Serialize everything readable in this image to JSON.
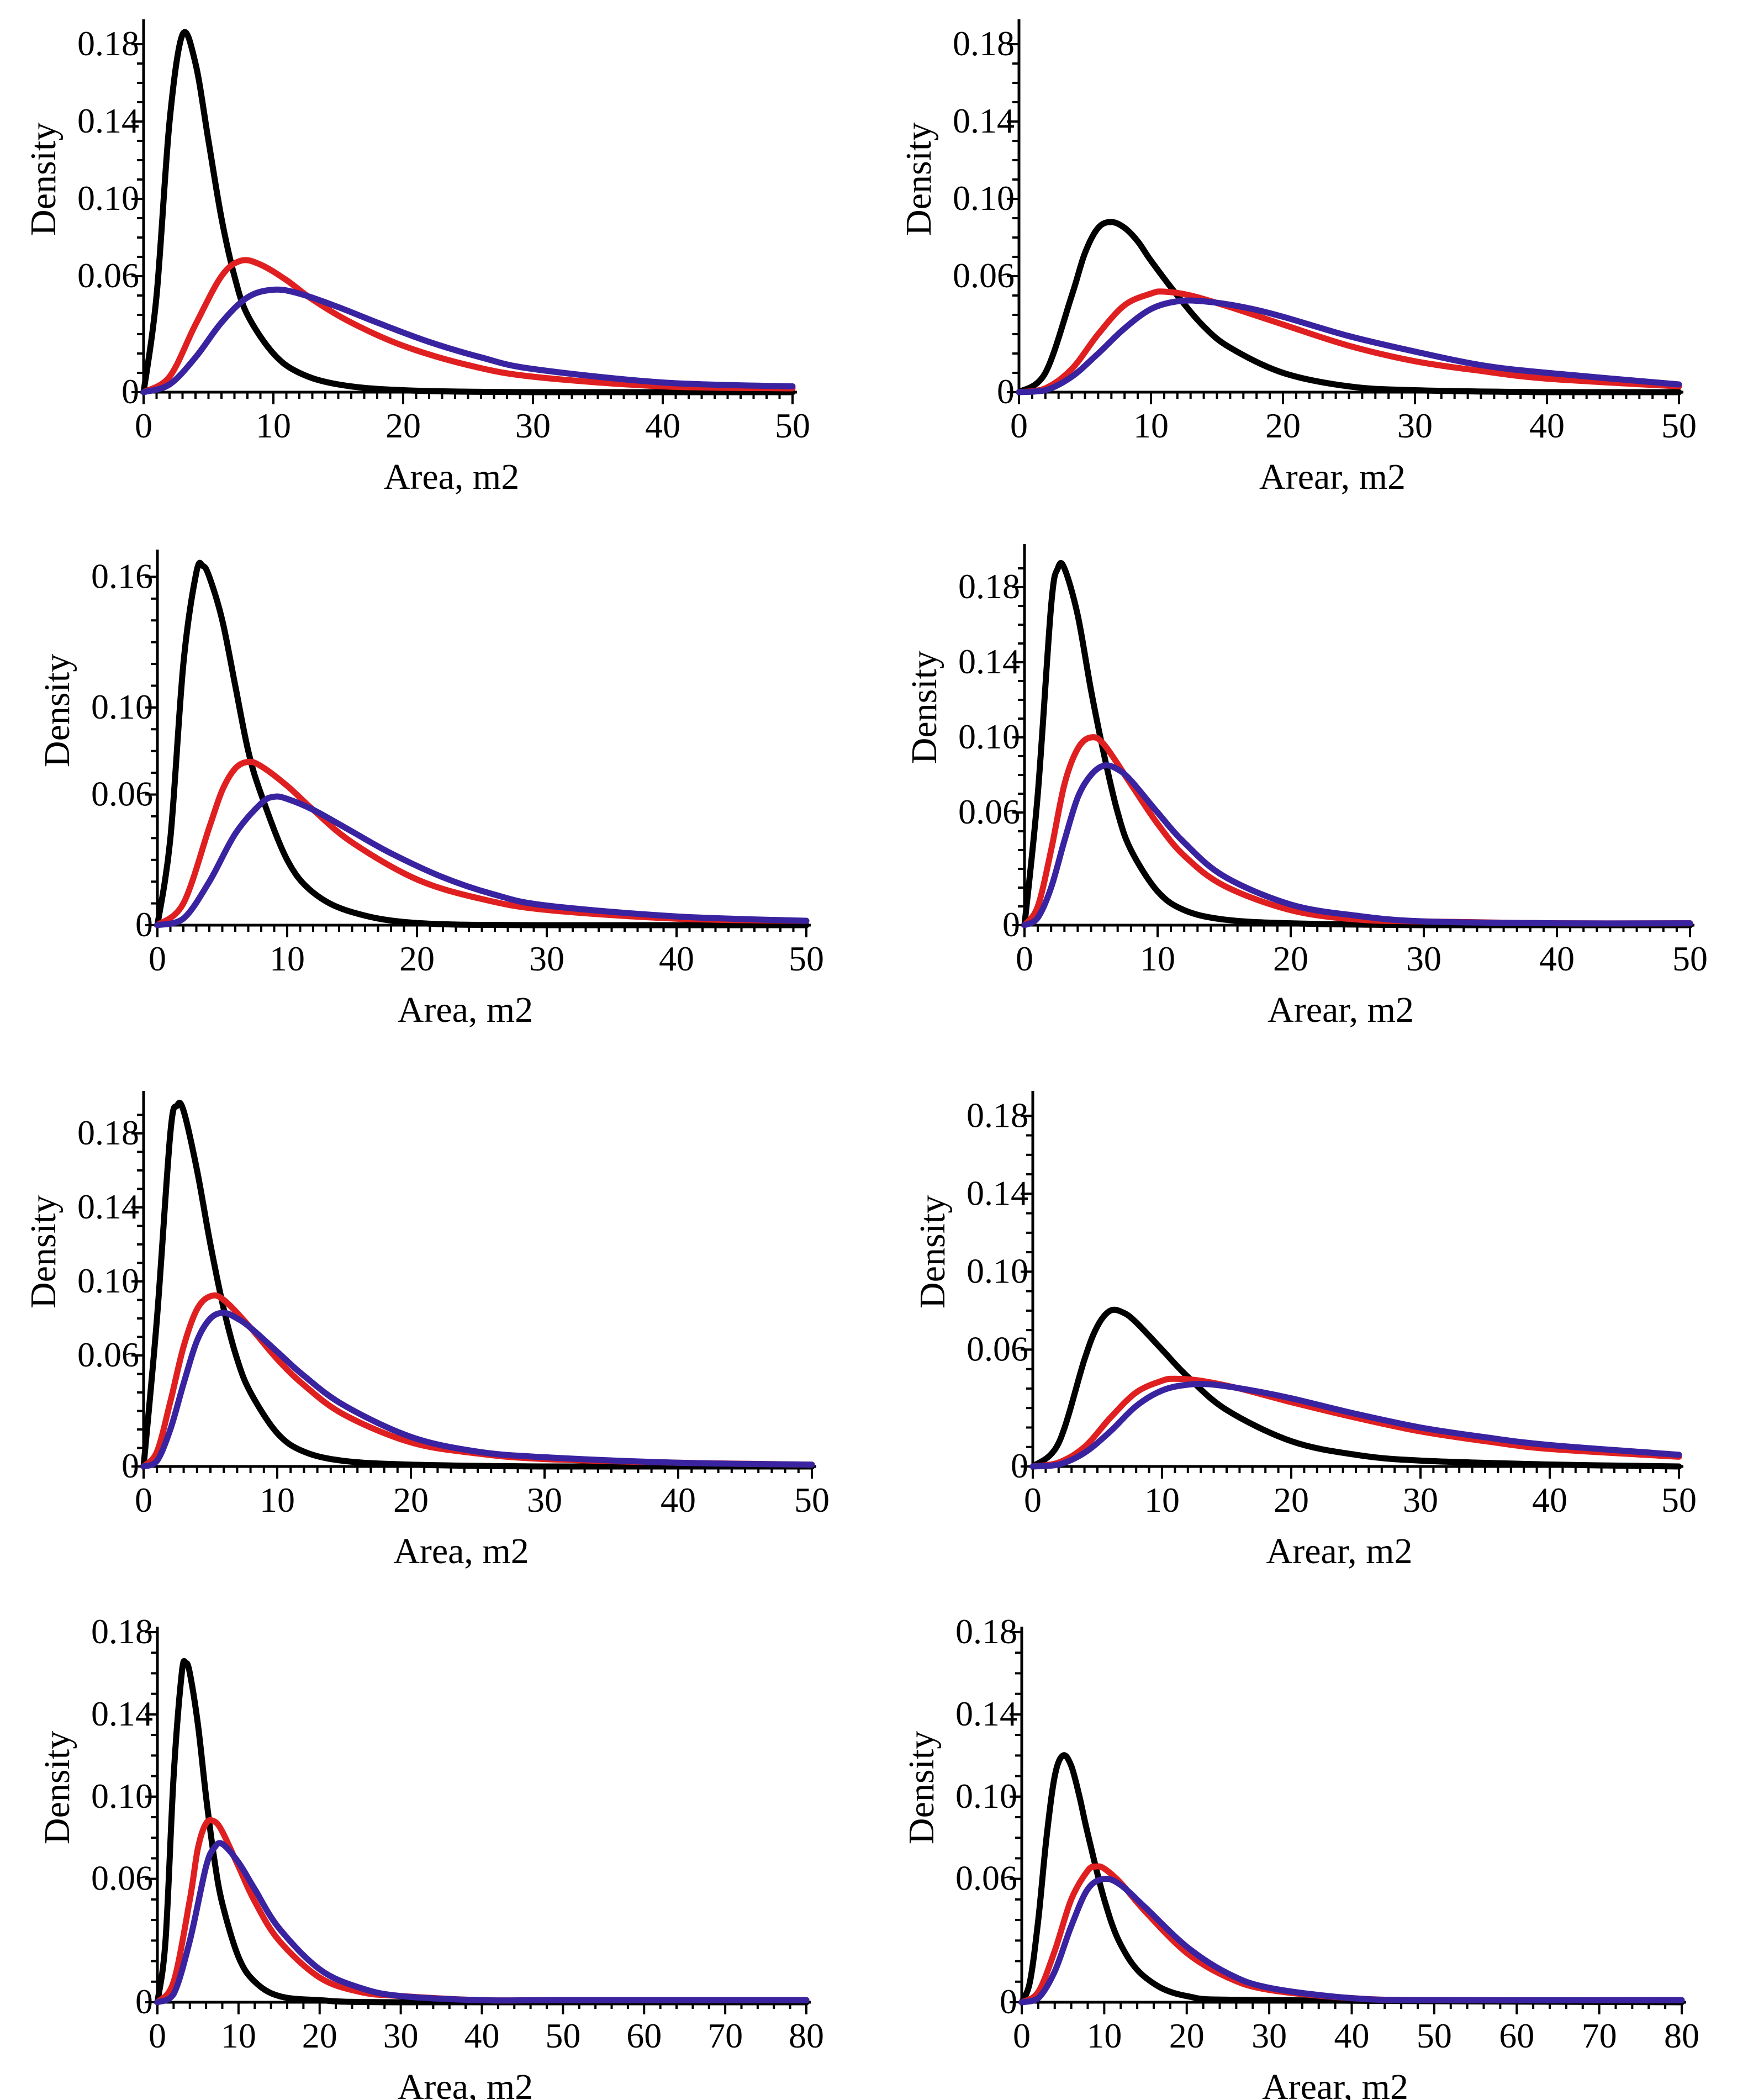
{
  "chart_data": [
    {
      "type": "line",
      "panel": "row-1-left",
      "title": "",
      "xlabel": "Area, m2",
      "ylabel": "Density",
      "xlim": [
        0,
        50
      ],
      "ylim": [
        0,
        0.19
      ],
      "xticks": [
        "0",
        "10",
        "20",
        "30",
        "40",
        "50"
      ],
      "yticks": [
        "0",
        "0.06",
        "0.10",
        "0.14",
        "0.18"
      ],
      "series": [
        {
          "name": "black curve",
          "color": "#000000",
          "x": [
            0,
            1,
            2,
            3,
            4,
            5,
            6,
            7,
            8,
            10,
            12,
            15,
            20,
            30,
            50
          ],
          "y": [
            0,
            0.05,
            0.14,
            0.185,
            0.17,
            0.13,
            0.09,
            0.06,
            0.04,
            0.02,
            0.01,
            0.004,
            0.001,
            0,
            0
          ]
        },
        {
          "name": "red curve",
          "color": "#e02020",
          "x": [
            0,
            2,
            4,
            6,
            7.5,
            9,
            11,
            13,
            16,
            20,
            25,
            30,
            40,
            50
          ],
          "y": [
            0,
            0.008,
            0.035,
            0.06,
            0.068,
            0.066,
            0.058,
            0.048,
            0.036,
            0.024,
            0.014,
            0.008,
            0.003,
            0.002
          ]
        },
        {
          "name": "blue curve",
          "color": "#3a23a0",
          "x": [
            0,
            2,
            4,
            6,
            8,
            10,
            12,
            15,
            18,
            22,
            26,
            30,
            40,
            50
          ],
          "y": [
            0,
            0.004,
            0.018,
            0.036,
            0.049,
            0.053,
            0.051,
            0.044,
            0.036,
            0.026,
            0.018,
            0.012,
            0.005,
            0.003
          ]
        }
      ]
    },
    {
      "type": "line",
      "panel": "row-1-right",
      "title": "",
      "xlabel": "Arear, m2",
      "ylabel": "Density",
      "xlim": [
        0,
        50
      ],
      "ylim": [
        0,
        0.19
      ],
      "xticks": [
        "0",
        "10",
        "20",
        "30",
        "40",
        "50"
      ],
      "yticks": [
        "0",
        "0.06",
        "0.10",
        "0.14",
        "0.18"
      ],
      "series": [
        {
          "name": "black curve",
          "color": "#000000",
          "x": [
            0,
            2,
            4,
            5,
            6,
            7,
            8,
            9,
            10,
            12,
            14,
            16,
            20,
            25,
            30,
            40,
            50
          ],
          "y": [
            0,
            0.01,
            0.05,
            0.072,
            0.085,
            0.088,
            0.085,
            0.078,
            0.068,
            0.05,
            0.034,
            0.023,
            0.01,
            0.003,
            0.001,
            0,
            0
          ]
        },
        {
          "name": "red curve",
          "color": "#e02020",
          "x": [
            0,
            2,
            4,
            6,
            8,
            10,
            11,
            13,
            16,
            20,
            25,
            30,
            35,
            40,
            50
          ],
          "y": [
            0,
            0.002,
            0.012,
            0.03,
            0.045,
            0.051,
            0.052,
            0.05,
            0.044,
            0.035,
            0.024,
            0.016,
            0.011,
            0.007,
            0.003
          ]
        },
        {
          "name": "blue curve",
          "color": "#3a23a0",
          "x": [
            0,
            2,
            4,
            6,
            8,
            10,
            12,
            14,
            17,
            20,
            25,
            30,
            35,
            40,
            50
          ],
          "y": [
            0,
            0.001,
            0.008,
            0.02,
            0.033,
            0.043,
            0.047,
            0.047,
            0.044,
            0.039,
            0.029,
            0.021,
            0.014,
            0.01,
            0.004
          ]
        }
      ]
    },
    {
      "type": "line",
      "panel": "row-2-left",
      "title": "",
      "xlabel": "Area, m2",
      "ylabel": "Density",
      "xlim": [
        0,
        50
      ],
      "ylim": [
        0,
        0.17
      ],
      "xticks": [
        "0",
        "10",
        "20",
        "30",
        "40",
        "50"
      ],
      "yticks": [
        "0",
        "0.06",
        "0.10",
        "0.16"
      ],
      "series": [
        {
          "name": "black curve",
          "color": "#000000",
          "x": [
            0,
            1,
            2,
            3,
            3.5,
            4,
            5,
            6,
            7,
            8,
            10,
            12,
            15,
            20,
            30,
            50
          ],
          "y": [
            0,
            0.04,
            0.12,
            0.162,
            0.165,
            0.16,
            0.14,
            0.11,
            0.08,
            0.06,
            0.03,
            0.015,
            0.006,
            0.001,
            0,
            0
          ]
        },
        {
          "name": "red curve",
          "color": "#e02020",
          "x": [
            0,
            2,
            4,
            5,
            6,
            7,
            8,
            10,
            12,
            15,
            20,
            25,
            30,
            40,
            50
          ],
          "y": [
            0,
            0.01,
            0.045,
            0.062,
            0.072,
            0.075,
            0.073,
            0.064,
            0.053,
            0.038,
            0.021,
            0.012,
            0.007,
            0.003,
            0.002
          ]
        },
        {
          "name": "blue curve",
          "color": "#3a23a0",
          "x": [
            0,
            2,
            4,
            6,
            8,
            9,
            10,
            12,
            15,
            18,
            22,
            26,
            30,
            40,
            50
          ],
          "y": [
            0,
            0.003,
            0.02,
            0.042,
            0.056,
            0.059,
            0.058,
            0.053,
            0.043,
            0.033,
            0.022,
            0.014,
            0.009,
            0.004,
            0.002
          ]
        }
      ]
    },
    {
      "type": "line",
      "panel": "row-2-right",
      "title": "",
      "xlabel": "Arear, m2",
      "ylabel": "Density",
      "xlim": [
        0,
        50
      ],
      "ylim": [
        0,
        0.2
      ],
      "xticks": [
        "0",
        "10",
        "20",
        "30",
        "40",
        "50"
      ],
      "yticks": [
        "0",
        "0.06",
        "0.10",
        "0.14",
        "0.18"
      ],
      "series": [
        {
          "name": "black curve",
          "color": "#000000",
          "x": [
            0,
            1,
            2,
            2.5,
            3,
            4,
            5,
            6,
            7,
            8,
            10,
            12,
            15,
            20,
            30,
            50
          ],
          "y": [
            0,
            0.07,
            0.17,
            0.19,
            0.19,
            0.165,
            0.125,
            0.09,
            0.06,
            0.04,
            0.018,
            0.008,
            0.003,
            0.001,
            0,
            0
          ]
        },
        {
          "name": "red curve",
          "color": "#e02020",
          "x": [
            0,
            1,
            2,
            3,
            4,
            5,
            6,
            8,
            10,
            12,
            15,
            20,
            25,
            30,
            40,
            50
          ],
          "y": [
            0,
            0.01,
            0.04,
            0.075,
            0.094,
            0.1,
            0.096,
            0.075,
            0.054,
            0.037,
            0.021,
            0.008,
            0.003,
            0.002,
            0.001,
            0.001
          ]
        },
        {
          "name": "blue curve",
          "color": "#3a23a0",
          "x": [
            0,
            1,
            2,
            3,
            4,
            5,
            6,
            7,
            8,
            10,
            12,
            15,
            20,
            25,
            30,
            40,
            50
          ],
          "y": [
            0,
            0.004,
            0.02,
            0.045,
            0.068,
            0.08,
            0.085,
            0.083,
            0.077,
            0.06,
            0.044,
            0.026,
            0.011,
            0.005,
            0.002,
            0.001,
            0.001
          ]
        }
      ]
    },
    {
      "type": "line",
      "panel": "row-3-left",
      "title": "",
      "xlabel": "Area, m2",
      "ylabel": "Density",
      "xlim": [
        0,
        50
      ],
      "ylim": [
        0,
        0.2
      ],
      "xticks": [
        "0",
        "10",
        "20",
        "30",
        "40",
        "50"
      ],
      "yticks": [
        "0",
        "0.06",
        "0.10",
        "0.14",
        "0.18"
      ],
      "series": [
        {
          "name": "black curve",
          "color": "#000000",
          "x": [
            0,
            1,
            2,
            2.5,
            3,
            4,
            5,
            6,
            7,
            8,
            10,
            12,
            15,
            20,
            30,
            50
          ],
          "y": [
            0,
            0.08,
            0.18,
            0.195,
            0.192,
            0.16,
            0.12,
            0.085,
            0.058,
            0.04,
            0.018,
            0.008,
            0.003,
            0.001,
            0,
            0
          ]
        },
        {
          "name": "red curve",
          "color": "#e02020",
          "x": [
            0,
            1,
            2,
            3,
            4,
            5,
            6,
            8,
            10,
            12,
            15,
            20,
            25,
            30,
            40,
            50
          ],
          "y": [
            0,
            0.008,
            0.035,
            0.065,
            0.085,
            0.092,
            0.09,
            0.075,
            0.058,
            0.044,
            0.028,
            0.013,
            0.007,
            0.004,
            0.002,
            0.001
          ]
        },
        {
          "name": "blue curve",
          "color": "#3a23a0",
          "x": [
            0,
            1,
            2,
            3,
            4,
            5,
            6,
            7,
            8,
            10,
            12,
            15,
            20,
            25,
            30,
            40,
            50
          ],
          "y": [
            0,
            0.003,
            0.02,
            0.045,
            0.068,
            0.08,
            0.083,
            0.08,
            0.075,
            0.062,
            0.049,
            0.033,
            0.016,
            0.008,
            0.005,
            0.002,
            0.001
          ]
        }
      ]
    },
    {
      "type": "line",
      "panel": "row-3-right",
      "title": "",
      "xlabel": "Arear, m2",
      "ylabel": "Density",
      "xlim": [
        0,
        50
      ],
      "ylim": [
        0,
        0.19
      ],
      "xticks": [
        "0",
        "10",
        "20",
        "30",
        "40",
        "50"
      ],
      "yticks": [
        "0",
        "0.06",
        "0.10",
        "0.14",
        "0.18"
      ],
      "series": [
        {
          "name": "black curve",
          "color": "#000000",
          "x": [
            0,
            2,
            4,
            5,
            6,
            7,
            8,
            10,
            12,
            15,
            20,
            25,
            30,
            40,
            50
          ],
          "y": [
            0,
            0.012,
            0.055,
            0.072,
            0.08,
            0.079,
            0.074,
            0.06,
            0.046,
            0.029,
            0.013,
            0.006,
            0.003,
            0.001,
            0
          ]
        },
        {
          "name": "red curve",
          "color": "#e02020",
          "x": [
            0,
            2,
            4,
            6,
            8,
            10,
            11,
            13,
            16,
            20,
            25,
            30,
            35,
            40,
            50
          ],
          "y": [
            0,
            0.002,
            0.01,
            0.025,
            0.038,
            0.044,
            0.045,
            0.044,
            0.04,
            0.033,
            0.025,
            0.018,
            0.013,
            0.009,
            0.005
          ]
        },
        {
          "name": "blue curve",
          "color": "#3a23a0",
          "x": [
            0,
            2,
            4,
            6,
            8,
            10,
            12,
            14,
            17,
            20,
            25,
            30,
            35,
            40,
            50
          ],
          "y": [
            0,
            0.001,
            0.007,
            0.018,
            0.031,
            0.039,
            0.042,
            0.042,
            0.039,
            0.035,
            0.027,
            0.02,
            0.015,
            0.011,
            0.006
          ]
        }
      ]
    },
    {
      "type": "line",
      "panel": "row-4-left",
      "title": "",
      "xlabel": "Area, m2",
      "ylabel": "Density",
      "xlim": [
        0,
        80
      ],
      "ylim": [
        0,
        0.18
      ],
      "xticks": [
        "0",
        "10",
        "20",
        "30",
        "40",
        "50",
        "60",
        "70",
        "80"
      ],
      "yticks": [
        "0",
        "0.06",
        "0.10",
        "0.14",
        "0.18"
      ],
      "series": [
        {
          "name": "black curve",
          "color": "#000000",
          "x": [
            0,
            1,
            2,
            3,
            3.5,
            4,
            5,
            6,
            7,
            8,
            10,
            12,
            15,
            20,
            30,
            80
          ],
          "y": [
            0,
            0.03,
            0.11,
            0.16,
            0.165,
            0.16,
            0.135,
            0.1,
            0.07,
            0.048,
            0.022,
            0.01,
            0.003,
            0.001,
            0,
            0
          ]
        },
        {
          "name": "red curve",
          "color": "#e02020",
          "x": [
            0,
            2,
            4,
            5,
            6,
            7,
            8,
            10,
            12,
            15,
            20,
            25,
            30,
            40,
            50,
            80
          ],
          "y": [
            0,
            0.01,
            0.05,
            0.075,
            0.087,
            0.088,
            0.083,
            0.066,
            0.049,
            0.03,
            0.012,
            0.005,
            0.003,
            0.001,
            0.001,
            0.001
          ]
        },
        {
          "name": "blue curve",
          "color": "#3a23a0",
          "x": [
            0,
            2,
            4,
            6,
            7,
            8,
            10,
            12,
            15,
            20,
            25,
            30,
            40,
            50,
            80
          ],
          "y": [
            0,
            0.004,
            0.03,
            0.066,
            0.075,
            0.077,
            0.068,
            0.055,
            0.036,
            0.016,
            0.007,
            0.003,
            0.001,
            0.001,
            0.001
          ]
        }
      ]
    },
    {
      "type": "line",
      "panel": "row-4-right",
      "title": "",
      "xlabel": "Arear, m2",
      "ylabel": "Density",
      "xlim": [
        0,
        80
      ],
      "ylim": [
        0,
        0.18
      ],
      "xticks": [
        "0",
        "10",
        "20",
        "30",
        "40",
        "50",
        "60",
        "70",
        "80"
      ],
      "yticks": [
        "0",
        "0.06",
        "0.10",
        "0.14",
        "0.18"
      ],
      "series": [
        {
          "name": "black curve",
          "color": "#000000",
          "x": [
            0,
            1,
            2,
            3,
            4,
            5,
            6,
            7,
            8,
            10,
            12,
            15,
            20,
            30,
            80
          ],
          "y": [
            0,
            0.01,
            0.04,
            0.08,
            0.11,
            0.12,
            0.115,
            0.1,
            0.082,
            0.05,
            0.028,
            0.012,
            0.003,
            0.001,
            0
          ]
        },
        {
          "name": "red curve",
          "color": "#e02020",
          "x": [
            0,
            2,
            4,
            6,
            8,
            9,
            10,
            12,
            15,
            20,
            25,
            30,
            40,
            50,
            80
          ],
          "y": [
            0,
            0.005,
            0.025,
            0.05,
            0.064,
            0.066,
            0.065,
            0.058,
            0.044,
            0.024,
            0.012,
            0.006,
            0.002,
            0.001,
            0.001
          ]
        },
        {
          "name": "blue curve",
          "color": "#3a23a0",
          "x": [
            0,
            2,
            4,
            6,
            8,
            10,
            12,
            15,
            20,
            25,
            30,
            40,
            50,
            80
          ],
          "y": [
            0,
            0.002,
            0.015,
            0.037,
            0.055,
            0.06,
            0.057,
            0.046,
            0.027,
            0.014,
            0.007,
            0.002,
            0.001,
            0.001
          ]
        }
      ]
    }
  ]
}
